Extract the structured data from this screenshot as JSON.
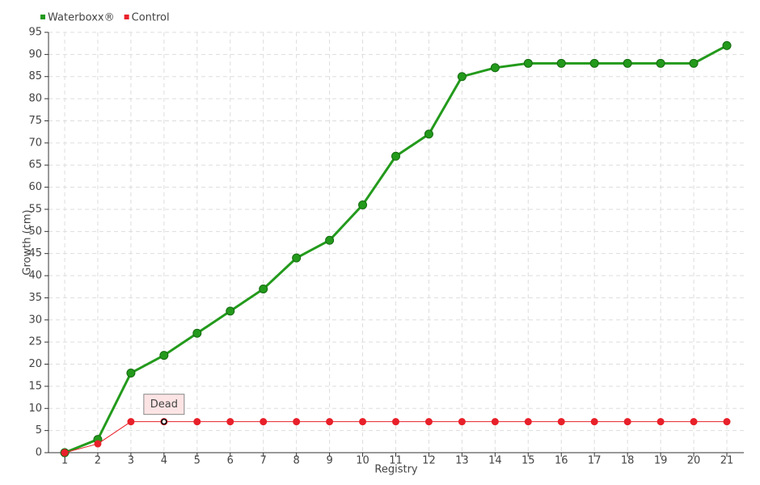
{
  "chart_data": {
    "type": "line",
    "x_label": "Registry",
    "y_label": "Growth (cm)",
    "categories": [
      "1",
      "2",
      "3",
      "4",
      "5",
      "6",
      "7",
      "8",
      "9",
      "10",
      "11",
      "12",
      "13",
      "14",
      "15",
      "16",
      "17",
      "18",
      "19",
      "20",
      "21"
    ],
    "series": [
      {
        "name": "Waterboxx®",
        "color": "#239a1c",
        "values": [
          0,
          3,
          18,
          22,
          27,
          32,
          37,
          44,
          48,
          56,
          67,
          72,
          85,
          87,
          88,
          88,
          88,
          88,
          88,
          88,
          92
        ]
      },
      {
        "name": "Control",
        "color": "#e8202a",
        "values": [
          0,
          2,
          7,
          7,
          7,
          7,
          7,
          7,
          7,
          7,
          7,
          7,
          7,
          7,
          7,
          7,
          7,
          7,
          7,
          7,
          7
        ]
      }
    ],
    "annotation": {
      "text": "Dead",
      "x": "4",
      "y": 7
    },
    "ylim": [
      0,
      95
    ],
    "yticks": [
      0,
      5,
      10,
      15,
      20,
      25,
      30,
      35,
      40,
      45,
      50,
      55,
      60,
      65,
      70,
      75,
      80,
      85,
      90,
      95
    ],
    "grid": true,
    "legend": "top-left"
  }
}
